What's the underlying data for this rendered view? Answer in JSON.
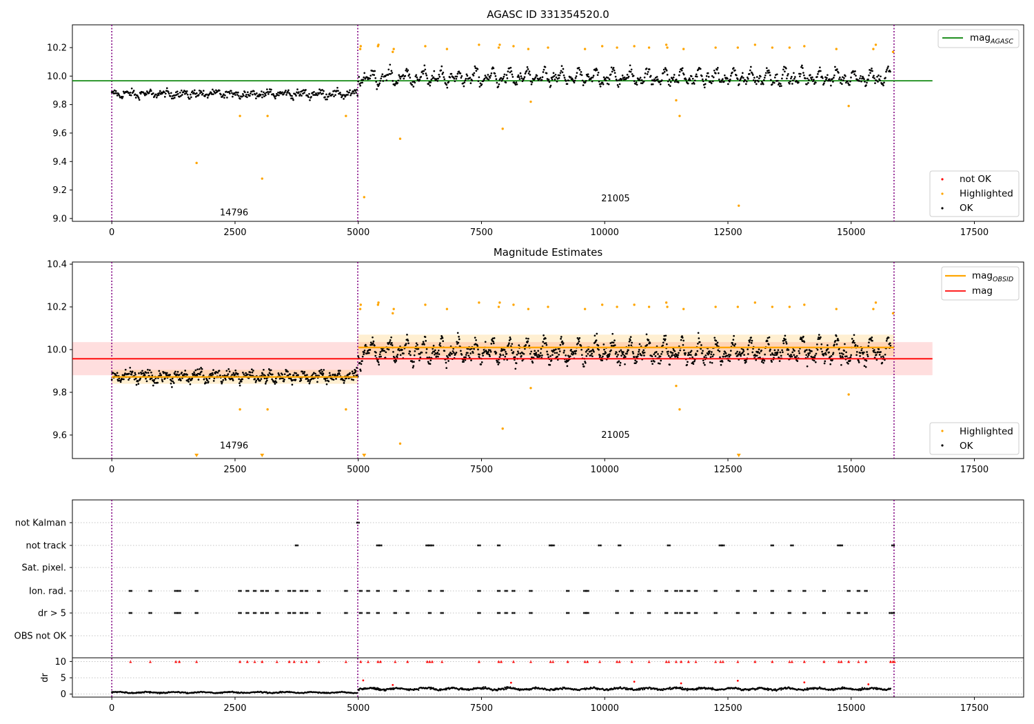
{
  "chart_data": [
    {
      "type": "scatter",
      "title": "AGASC ID 331354520.0",
      "xlabel": "",
      "ylabel": "",
      "xlim": [
        -800,
        18500
      ],
      "ylim": [
        8.98,
        10.36
      ],
      "xticks": [
        0,
        2500,
        5000,
        7500,
        10000,
        12500,
        15000,
        17500
      ],
      "yticks": [
        9.0,
        9.2,
        9.4,
        9.6,
        9.8,
        10.0,
        10.2
      ],
      "ytick_labels": [
        "9.0",
        "9.2",
        "9.4",
        "9.6",
        "9.8",
        "10.0",
        "10.2"
      ],
      "obsid_boundaries": [
        0,
        4990,
        15870
      ],
      "obsid_labels": [
        {
          "x": 2480,
          "y": 9.04,
          "text": "14796"
        },
        {
          "x": 10220,
          "y": 9.14,
          "text": "21005"
        }
      ],
      "reference_lines": [
        {
          "label": "mag_AGASC",
          "value": 9.967,
          "x_range": [
            -800,
            16650
          ],
          "color": "#008000"
        }
      ],
      "legend_upper": {
        "position": "top-right",
        "entries": [
          {
            "text": "mag",
            "sub": "AGASC",
            "color": "#008000",
            "kind": "line"
          }
        ]
      },
      "legend_lower": {
        "position": "bottom-right",
        "entries": [
          {
            "text": "not OK",
            "color": "#ff0000",
            "kind": "marker"
          },
          {
            "text": "Highlighted",
            "color": "#ffa500",
            "kind": "marker"
          },
          {
            "text": "OK",
            "color": "#000000",
            "kind": "marker"
          }
        ]
      },
      "series": [
        {
          "name": "OK",
          "color": "#000000",
          "segments": [
            {
              "x_range": [
                0,
                4990
              ],
              "center": 9.875,
              "spread": 0.04,
              "amplitude": 0.02
            },
            {
              "x_range": [
                5000,
                15800
              ],
              "center": 9.99,
              "spread": 0.05,
              "amplitude": 0.06
            }
          ]
        },
        {
          "name": "Highlighted",
          "color": "#ffa500",
          "points": [
            [
              1720,
              9.39
            ],
            [
              2600,
              9.72
            ],
            [
              3050,
              9.28
            ],
            [
              3160,
              9.72
            ],
            [
              4750,
              9.72
            ],
            [
              5120,
              9.15
            ],
            [
              5850,
              9.56
            ],
            [
              7930,
              9.63
            ],
            [
              8500,
              9.82
            ],
            [
              11450,
              9.83
            ],
            [
              11520,
              9.72
            ],
            [
              12720,
              9.09
            ],
            [
              14950,
              9.79
            ],
            [
              5040,
              10.19
            ],
            [
              5050,
              10.21
            ],
            [
              5400,
              10.21
            ],
            [
              5410,
              10.22
            ],
            [
              5700,
              10.17
            ],
            [
              5720,
              10.19
            ],
            [
              6360,
              10.21
            ],
            [
              6800,
              10.19
            ],
            [
              7450,
              10.22
            ],
            [
              7850,
              10.2
            ],
            [
              7870,
              10.22
            ],
            [
              8150,
              10.21
            ],
            [
              8450,
              10.19
            ],
            [
              8850,
              10.2
            ],
            [
              9600,
              10.19
            ],
            [
              9950,
              10.21
            ],
            [
              10250,
              10.2
            ],
            [
              10600,
              10.21
            ],
            [
              10900,
              10.2
            ],
            [
              11250,
              10.22
            ],
            [
              11270,
              10.2
            ],
            [
              11600,
              10.19
            ],
            [
              12250,
              10.2
            ],
            [
              12700,
              10.2
            ],
            [
              13050,
              10.22
            ],
            [
              13400,
              10.2
            ],
            [
              13750,
              10.2
            ],
            [
              14050,
              10.21
            ],
            [
              14700,
              10.19
            ],
            [
              15450,
              10.19
            ],
            [
              15500,
              10.22
            ],
            [
              15850,
              10.17
            ]
          ]
        }
      ]
    },
    {
      "type": "scatter",
      "title": "Magnitude Estimates",
      "xlabel": "",
      "ylabel": "",
      "xlim": [
        -800,
        18500
      ],
      "ylim": [
        9.49,
        10.41
      ],
      "xticks": [
        0,
        2500,
        5000,
        7500,
        10000,
        12500,
        15000,
        17500
      ],
      "yticks": [
        9.6,
        9.8,
        10.0,
        10.2,
        10.4
      ],
      "ytick_labels": [
        "9.6",
        "9.8",
        "10.0",
        "10.2",
        "10.4"
      ],
      "obsid_boundaries": [
        0,
        4990,
        15870
      ],
      "obsid_labels": [
        {
          "x": 2480,
          "y": 9.55,
          "text": "14796"
        },
        {
          "x": 10220,
          "y": 9.6,
          "text": "21005"
        }
      ],
      "mag_band": {
        "value": 9.957,
        "low": 9.88,
        "high": 10.035,
        "x_range": [
          -800,
          16650
        ],
        "color": "#ff0000"
      },
      "mag_obsid": [
        {
          "x_range": [
            0,
            4990
          ],
          "value": 9.872,
          "low": 9.84,
          "high": 9.905
        },
        {
          "x_range": [
            5000,
            15870
          ],
          "value": 10.01,
          "low": 9.97,
          "high": 10.07
        }
      ],
      "off_scale_markers": [
        1720,
        3050,
        5120,
        12720
      ],
      "legend_upper": {
        "position": "top-right",
        "entries": [
          {
            "text": "mag",
            "sub": "OBSID",
            "color": "#ffa500",
            "kind": "line"
          },
          {
            "text": "mag",
            "sub": "",
            "color": "#ff0000",
            "kind": "line"
          }
        ]
      },
      "legend_lower": {
        "position": "bottom-right",
        "entries": [
          {
            "text": "Highlighted",
            "color": "#ffa500",
            "kind": "marker"
          },
          {
            "text": "OK",
            "color": "#000000",
            "kind": "marker"
          }
        ]
      }
    },
    {
      "type": "scatter",
      "title": "",
      "xlabel": "",
      "ylabel": "dr",
      "xlim": [
        -800,
        18500
      ],
      "xticks": [
        0,
        2500,
        5000,
        7500,
        10000,
        12500,
        15000,
        17500
      ],
      "flag_rows": [
        "not Kalman",
        "not track",
        "Sat. pixel.",
        "Ion. rad.",
        "dr > 5",
        "OBS not OK"
      ],
      "flag_events": {
        "not Kalman": [
          4995
        ],
        "not track": [
          3750,
          5400,
          5450,
          6400,
          6450,
          6500,
          7450,
          7850,
          8900,
          8950,
          9900,
          10300,
          11300,
          12350,
          12400,
          13400,
          13800,
          14750,
          14800,
          15850
        ],
        "Sat. pixel.": [],
        "Ion. rad.": [
          380,
          780,
          1300,
          1370,
          1720,
          2600,
          2750,
          2900,
          3050,
          3150,
          3350,
          3600,
          3700,
          3850,
          3950,
          4200,
          4750,
          5050,
          5200,
          5400,
          5750,
          6000,
          6450,
          6700,
          7450,
          7850,
          8000,
          8150,
          8500,
          9250,
          9600,
          9650,
          10250,
          10550,
          10900,
          11250,
          11450,
          11550,
          11700,
          11850,
          12250,
          12700,
          13050,
          13400,
          13750,
          14050,
          14450,
          14950,
          15150,
          15300
        ],
        "dr > 5": [
          380,
          780,
          1300,
          1370,
          1720,
          2600,
          2750,
          2900,
          3050,
          3150,
          3350,
          3600,
          3700,
          3850,
          3950,
          4200,
          4750,
          5050,
          5200,
          5400,
          5750,
          6000,
          6450,
          6700,
          7450,
          7850,
          8000,
          8150,
          8500,
          9250,
          9600,
          9650,
          10250,
          10550,
          10900,
          11250,
          11450,
          11550,
          11700,
          11850,
          12250,
          12700,
          13050,
          13400,
          13750,
          14050,
          14450,
          14950,
          15150,
          15300,
          15800,
          15850
        ],
        "OBS not OK": []
      },
      "dr": {
        "ylim": [
          -0.5,
          10.5
        ],
        "yticks": [
          0,
          5,
          10
        ],
        "ytick_labels": [
          "0",
          "5",
          "10"
        ],
        "segments": [
          {
            "x_range": [
              0,
              4990
            ],
            "center": 0.5,
            "spread": 0.35
          },
          {
            "x_range": [
              5000,
              15800
            ],
            "center": 1.6,
            "spread": 0.6
          }
        ],
        "clipped_color": "#ff0000",
        "clipped_x": [
          380,
          780,
          1300,
          1370,
          1720,
          2600,
          2750,
          2900,
          3050,
          3350,
          3600,
          3700,
          3850,
          3950,
          4200,
          4750,
          5050,
          5200,
          5400,
          5450,
          5750,
          6000,
          6400,
          6450,
          6500,
          6700,
          7450,
          7850,
          7900,
          8150,
          8500,
          8900,
          8950,
          9250,
          9600,
          9650,
          9900,
          10250,
          10300,
          10550,
          10900,
          11250,
          11300,
          11450,
          11550,
          11700,
          11850,
          12250,
          12350,
          12400,
          12700,
          13050,
          13400,
          13750,
          13800,
          14050,
          14450,
          14750,
          14800,
          14950,
          15150,
          15300,
          15800,
          15850,
          15880
        ],
        "outliers": [
          [
            5100,
            4.2
          ],
          [
            5700,
            2.8
          ],
          [
            8100,
            3.5
          ],
          [
            10600,
            3.8
          ],
          [
            11550,
            3.3
          ],
          [
            12700,
            4.1
          ],
          [
            14050,
            3.6
          ],
          [
            15350,
            3.0
          ]
        ]
      }
    }
  ]
}
